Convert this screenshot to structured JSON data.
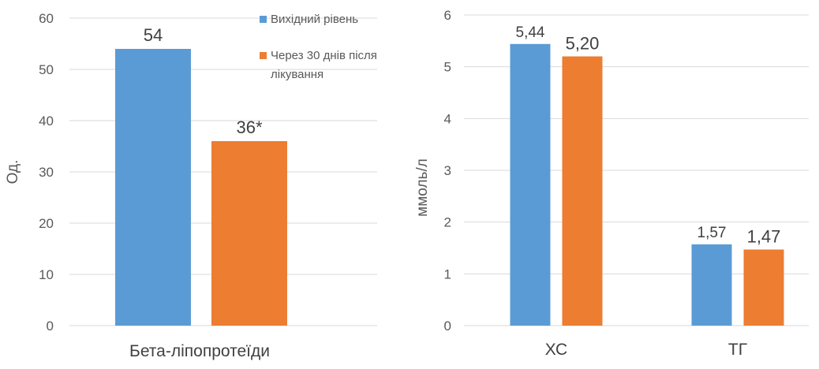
{
  "colors": {
    "baseline": "#5b9bd5",
    "after": "#ed7d31",
    "grid": "#d9d9d9",
    "text": "#595959"
  },
  "legend": {
    "placement": "top-right of left chart",
    "items": [
      {
        "label_lines": [
          "Вихідний рівень"
        ],
        "color": "#5b9bd5"
      },
      {
        "label_lines": [
          "Через 30 днів після",
          "лікування"
        ],
        "color": "#ed7d31"
      }
    ]
  },
  "chart_data": [
    {
      "type": "bar",
      "title": "",
      "ylabel": "Од.",
      "xlabel": "",
      "ylim": [
        0,
        60
      ],
      "yticks": [
        0,
        10,
        20,
        30,
        40,
        50,
        60
      ],
      "ytick_labels": [
        "0",
        "10",
        "20",
        "30",
        "40",
        "50",
        "60"
      ],
      "grid": true,
      "categories": [
        "Бета-ліпопротеїди"
      ],
      "series": [
        {
          "name": "Вихідний рівень",
          "values": [
            54
          ],
          "labels": [
            "54"
          ]
        },
        {
          "name": "Через 30 днів після лікування",
          "values": [
            36
          ],
          "labels": [
            "36*"
          ]
        }
      ]
    },
    {
      "type": "bar",
      "title": "",
      "ylabel": "ммоль/л",
      "xlabel": "",
      "ylim": [
        0,
        6
      ],
      "yticks": [
        0,
        1,
        2,
        3,
        4,
        5,
        6
      ],
      "ytick_labels": [
        "0",
        "1",
        "2",
        "3",
        "4",
        "5",
        "6"
      ],
      "grid": true,
      "categories": [
        "ХС",
        "ТГ"
      ],
      "series": [
        {
          "name": "Вихідний рівень",
          "values": [
            5.44,
            1.57
          ],
          "labels": [
            "5,44",
            "1,57"
          ]
        },
        {
          "name": "Через 30 днів після лікування",
          "values": [
            5.2,
            1.47
          ],
          "labels": [
            "5,20",
            "1,47"
          ]
        }
      ]
    }
  ]
}
